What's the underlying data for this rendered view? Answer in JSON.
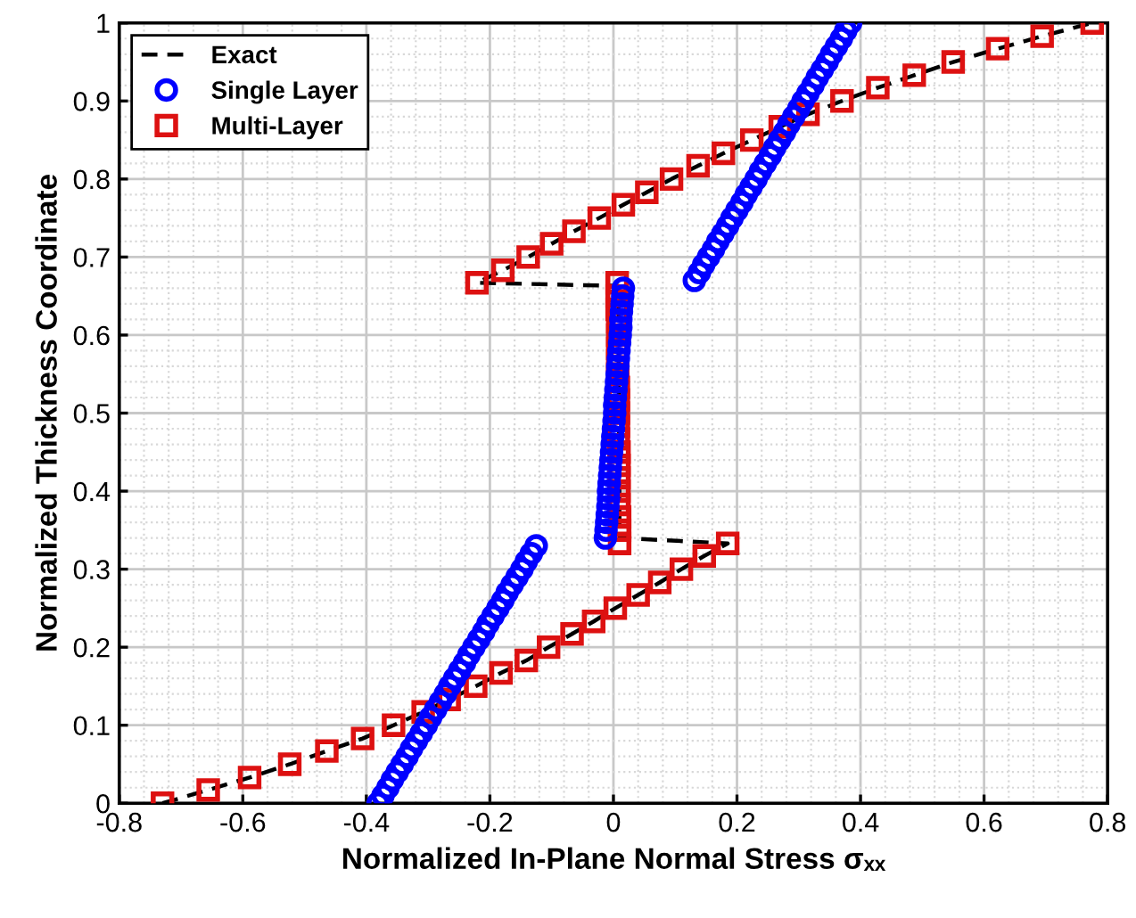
{
  "chart_data": {
    "type": "line",
    "xlabel": "Normalized In-Plane Normal Stress σₓₓ",
    "ylabel": "Normalized Thickness Coordinate",
    "xlim": [
      -0.8,
      0.8
    ],
    "xticks": [
      -0.8,
      -0.6,
      -0.4,
      -0.2,
      0,
      0.2,
      0.4,
      0.6,
      0.8
    ],
    "ylim": [
      0,
      1
    ],
    "yticks": [
      0,
      0.1,
      0.2,
      0.3,
      0.4,
      0.5,
      0.6,
      0.7,
      0.8,
      0.9,
      1
    ],
    "grid": true,
    "legend": "top left",
    "series": [
      {
        "name": "Exact",
        "type": "line",
        "color": "#000000",
        "line_style": "dashed",
        "marker": "none",
        "x": [
          -0.73,
          -0.656,
          -0.589,
          -0.524,
          -0.464,
          -0.406,
          -0.356,
          -0.308,
          -0.266,
          -0.223,
          -0.182,
          -0.141,
          -0.105,
          -0.067,
          -0.032,
          0.003,
          0.04,
          0.075,
          0.11,
          0.147,
          0.185,
          0.01,
          0.008,
          -0.221,
          -0.179,
          -0.138,
          -0.1,
          -0.064,
          -0.023,
          0.016,
          0.054,
          0.094,
          0.137,
          0.178,
          0.224,
          0.27,
          0.315,
          0.37,
          0.428,
          0.487,
          0.55,
          0.622,
          0.694,
          0.775
        ],
        "values": [
          0,
          0.017,
          0.033,
          0.05,
          0.067,
          0.083,
          0.1,
          0.117,
          0.133,
          0.15,
          0.167,
          0.183,
          0.2,
          0.217,
          0.233,
          0.25,
          0.267,
          0.283,
          0.3,
          0.317,
          0.333,
          0.34,
          0.663,
          0.667,
          0.683,
          0.7,
          0.717,
          0.733,
          0.75,
          0.767,
          0.783,
          0.8,
          0.817,
          0.833,
          0.85,
          0.867,
          0.883,
          0.9,
          0.917,
          0.933,
          0.95,
          0.967,
          0.983,
          1
        ]
      },
      {
        "name": "Single Layer",
        "type": "scatter",
        "color": "#0000ff",
        "marker": "circle",
        "x": [
          -0.381,
          -0.373,
          -0.365,
          -0.358,
          -0.35,
          -0.342,
          -0.334,
          -0.327,
          -0.319,
          -0.311,
          -0.303,
          -0.296,
          -0.288,
          -0.28,
          -0.272,
          -0.265,
          -0.257,
          -0.249,
          -0.241,
          -0.234,
          -0.226,
          -0.218,
          -0.21,
          -0.203,
          -0.195,
          -0.187,
          -0.179,
          -0.172,
          -0.164,
          -0.156,
          -0.148,
          -0.141,
          -0.133,
          -0.125,
          -0.013,
          -0.012,
          -0.011,
          -0.01,
          -0.009,
          -0.008,
          -0.008,
          -0.007,
          -0.006,
          -0.005,
          -0.004,
          -0.003,
          -0.002,
          -0.001,
          0.0,
          0.001,
          0.002,
          0.002,
          0.003,
          0.004,
          0.005,
          0.006,
          0.007,
          0.008,
          0.009,
          0.01,
          0.011,
          0.012,
          0.012,
          0.013,
          0.014,
          0.015,
          0.016,
          0.131,
          0.139,
          0.146,
          0.154,
          0.162,
          0.169,
          0.177,
          0.185,
          0.192,
          0.2,
          0.208,
          0.215,
          0.223,
          0.231,
          0.238,
          0.246,
          0.254,
          0.261,
          0.269,
          0.277,
          0.284,
          0.292,
          0.3,
          0.307,
          0.315,
          0.323,
          0.33,
          0.338,
          0.346,
          0.353,
          0.361,
          0.369,
          0.376,
          0.384
        ],
        "values": [
          0,
          0.01,
          0.02,
          0.03,
          0.04,
          0.05,
          0.06,
          0.07,
          0.08,
          0.09,
          0.1,
          0.11,
          0.12,
          0.13,
          0.14,
          0.15,
          0.16,
          0.17,
          0.18,
          0.19,
          0.2,
          0.21,
          0.22,
          0.23,
          0.24,
          0.25,
          0.26,
          0.27,
          0.28,
          0.29,
          0.3,
          0.31,
          0.32,
          0.33,
          0.34,
          0.35,
          0.36,
          0.37,
          0.38,
          0.39,
          0.4,
          0.41,
          0.42,
          0.43,
          0.44,
          0.45,
          0.46,
          0.47,
          0.48,
          0.49,
          0.5,
          0.51,
          0.52,
          0.53,
          0.54,
          0.55,
          0.56,
          0.57,
          0.58,
          0.59,
          0.6,
          0.61,
          0.62,
          0.63,
          0.64,
          0.65,
          0.66,
          0.67,
          0.68,
          0.69,
          0.7,
          0.71,
          0.72,
          0.73,
          0.74,
          0.75,
          0.76,
          0.77,
          0.78,
          0.79,
          0.8,
          0.81,
          0.82,
          0.83,
          0.84,
          0.85,
          0.86,
          0.87,
          0.88,
          0.89,
          0.9,
          0.91,
          0.92,
          0.93,
          0.94,
          0.95,
          0.96,
          0.97,
          0.98,
          0.99,
          1
        ]
      },
      {
        "name": "Multi-Layer",
        "type": "scatter",
        "color": "#dd1111",
        "marker": "square",
        "x": [
          -0.73,
          -0.656,
          -0.589,
          -0.524,
          -0.464,
          -0.406,
          -0.356,
          -0.308,
          -0.266,
          -0.223,
          -0.182,
          -0.141,
          -0.105,
          -0.067,
          -0.032,
          0.003,
          0.04,
          0.075,
          0.11,
          0.147,
          0.185,
          0.01,
          0.01,
          0.01,
          0.009,
          0.009,
          0.009,
          0.009,
          0.009,
          0.008,
          0.008,
          0.008,
          0.008,
          0.008,
          0.007,
          0.007,
          0.007,
          0.007,
          0.007,
          0.006,
          0.006,
          0.006,
          -0.221,
          -0.179,
          -0.138,
          -0.1,
          -0.064,
          -0.023,
          0.016,
          0.054,
          0.094,
          0.137,
          0.178,
          0.224,
          0.27,
          0.315,
          0.37,
          0.428,
          0.487,
          0.55,
          0.622,
          0.694,
          0.775
        ],
        "values": [
          0,
          0.017,
          0.033,
          0.05,
          0.067,
          0.083,
          0.1,
          0.117,
          0.133,
          0.15,
          0.167,
          0.183,
          0.2,
          0.217,
          0.233,
          0.25,
          0.267,
          0.283,
          0.3,
          0.317,
          0.333,
          0.333,
          0.35,
          0.367,
          0.383,
          0.4,
          0.417,
          0.433,
          0.45,
          0.467,
          0.483,
          0.5,
          0.517,
          0.533,
          0.55,
          0.567,
          0.583,
          0.6,
          0.617,
          0.633,
          0.65,
          0.667,
          0.667,
          0.683,
          0.7,
          0.717,
          0.733,
          0.75,
          0.767,
          0.783,
          0.8,
          0.817,
          0.833,
          0.85,
          0.867,
          0.883,
          0.9,
          0.917,
          0.933,
          0.95,
          0.967,
          0.983,
          1
        ]
      }
    ]
  }
}
